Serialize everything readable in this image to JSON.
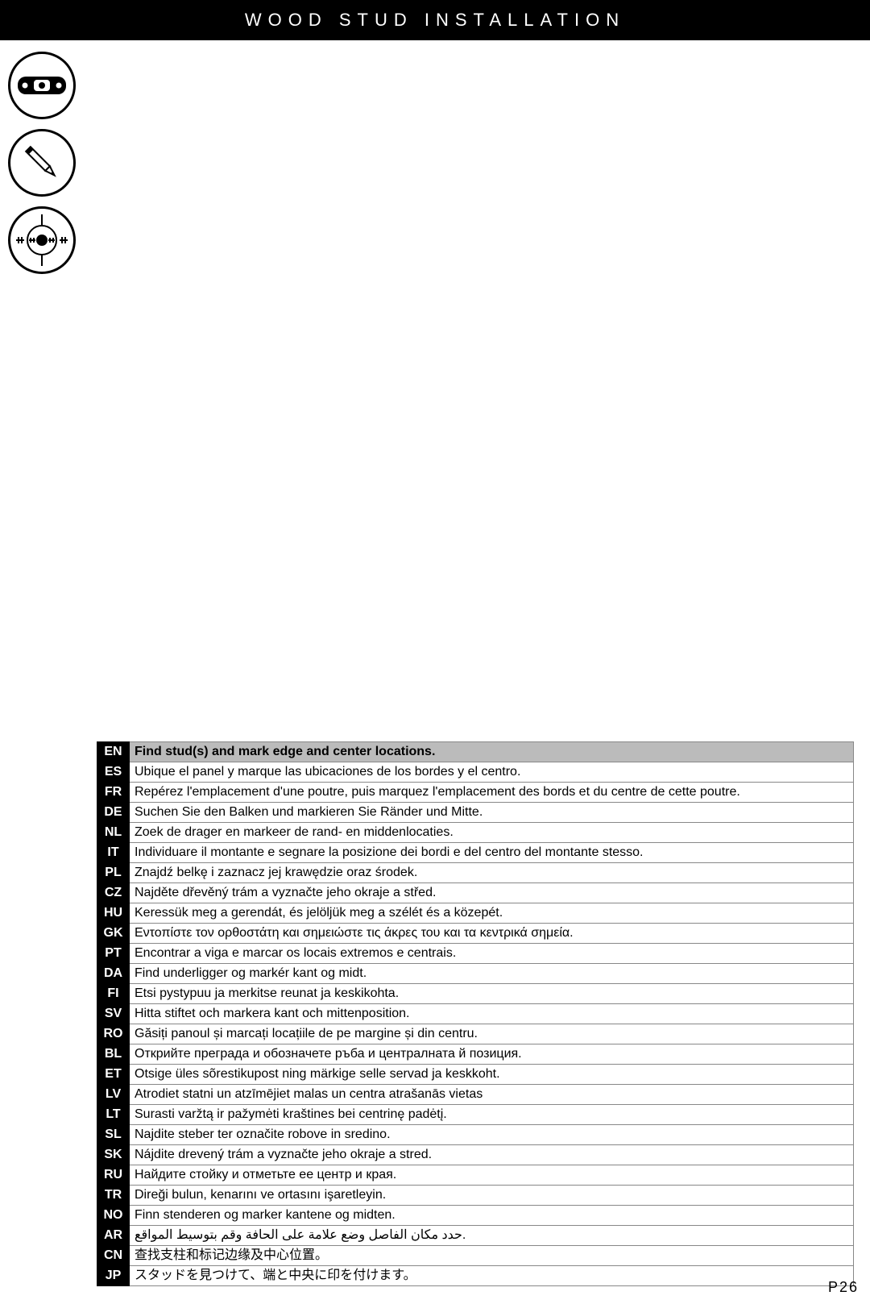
{
  "header": {
    "title": "WOOD STUD INSTALLATION"
  },
  "page_number": "P26",
  "icons": [
    {
      "name": "level-icon"
    },
    {
      "name": "pencil-icon"
    },
    {
      "name": "target-icon"
    }
  ],
  "table": {
    "border_color": "#888888",
    "code_bg": "#000000",
    "code_fg": "#ffffff",
    "first_row_bg": "#bbbbbb",
    "font_size": 16,
    "rows": [
      {
        "code": "EN",
        "text": "Find stud(s) and mark edge and center locations."
      },
      {
        "code": "ES",
        "text": "Ubique el panel y marque las ubicaciones de los bordes y el centro."
      },
      {
        "code": "FR",
        "text": "Repérez l'emplacement d'une poutre, puis marquez l'emplacement des bords et du centre de cette poutre."
      },
      {
        "code": "DE",
        "text": "Suchen Sie den Balken und markieren Sie Ränder und Mitte."
      },
      {
        "code": "NL",
        "text": "Zoek de drager en markeer de rand- en middenlocaties."
      },
      {
        "code": "IT",
        "text": "Individuare il montante e segnare la posizione dei bordi e del centro del montante stesso."
      },
      {
        "code": "PL",
        "text": "Znajdź belkę i zaznacz jej krawędzie oraz środek."
      },
      {
        "code": "CZ",
        "text": "Najděte dřevěný trám a vyznačte jeho okraje a střed."
      },
      {
        "code": "HU",
        "text": "Keressük meg a gerendát, és jelöljük meg a szélét és a közepét."
      },
      {
        "code": "GK",
        "text": "Εντοπίστε τον ορθοστάτη και σημειώστε τις άκρες του και τα κεντρικά σημεία."
      },
      {
        "code": "PT",
        "text": "Encontrar a viga e marcar os locais extremos e centrais."
      },
      {
        "code": "DA",
        "text": "Find underligger og markér kant og midt."
      },
      {
        "code": "FI",
        "text": "Etsi pystypuu ja merkitse reunat ja keskikohta."
      },
      {
        "code": "SV",
        "text": "Hitta stiftet och markera kant och mittenposition."
      },
      {
        "code": "RO",
        "text": "Găsiți panoul și marcați locațiile de pe margine și din centru."
      },
      {
        "code": "BL",
        "text": "Открийте преграда и обозначете ръба и централната й позиция."
      },
      {
        "code": "ET",
        "text": "Otsige üles sõrestikupost ning märkige selle servad ja keskkoht."
      },
      {
        "code": "LV",
        "text": "Atrodiet statni un atzīmējiet malas un centra atrašanās vietas"
      },
      {
        "code": "LT",
        "text": "Surasti varžtą ir pažymėti kraštines bei centrinę padėtį."
      },
      {
        "code": "SL",
        "text": "Najdite steber ter označite robove in sredino."
      },
      {
        "code": "SK",
        "text": "Nájdite drevený trám a vyznačte jeho okraje a stred."
      },
      {
        "code": "RU",
        "text": "Найдите стойку и отметьте ее центр и края."
      },
      {
        "code": "TR",
        "text": "Direği bulun, kenarını ve ortasını işaretleyin."
      },
      {
        "code": "NO",
        "text": "Finn stenderen og marker kantene og midten."
      },
      {
        "code": "AR",
        "text": "حدد مكان الفاصل وضع علامة على الحافة وقم بتوسيط المواقع."
      },
      {
        "code": "CN",
        "text": "查找支柱和标记边缘及中心位置。"
      },
      {
        "code": "JP",
        "text": "スタッドを見つけて、端と中央に印を付けます。"
      }
    ]
  }
}
